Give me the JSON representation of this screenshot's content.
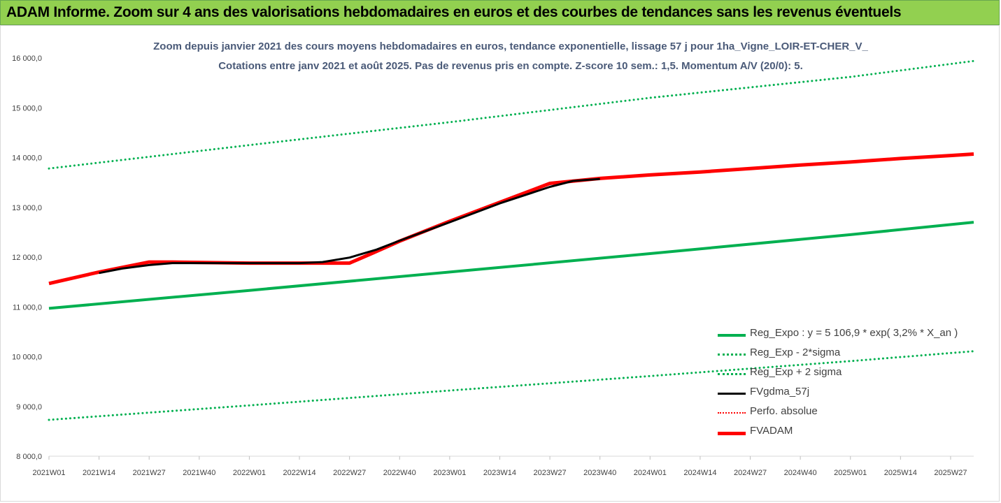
{
  "banner": {
    "title": "ADAM Informe. Zoom sur 4 ans des valorisations hebdomadaires en euros et des courbes de tendances sans les revenus éventuels"
  },
  "colors": {
    "banner_bg": "#92d050",
    "title_text": "#4a5a78",
    "reg_expo": "#00b050",
    "fvgdma": "#000000",
    "perfo": "#ff0000",
    "fvadam": "#ff0000"
  },
  "chart_data": {
    "type": "line",
    "title": "Zoom depuis janvier 2021 des cours moyens hebdomadaires en euros, tendance exponentielle, lissage 57 j pour 1ha_Vigne_LOIR-ET-CHER_V_",
    "subtitle": "Cotations entre janv 2021 et août 2025.  Pas de revenus pris en compte. Z-score 10 sem.: 1,5. Momentum A/V (20/0): 5.",
    "xlabel": "",
    "ylabel": "",
    "ylim": [
      8000,
      16000
    ],
    "xlim": [
      "2021W01",
      "2025W33"
    ],
    "grid": false,
    "legend_position": "bottom-right",
    "x_ticks": [
      "2021W01",
      "2021W14",
      "2021W27",
      "2021W40",
      "2022W01",
      "2022W14",
      "2022W27",
      "2022W40",
      "2023W01",
      "2023W14",
      "2023W27",
      "2023W40",
      "2024W01",
      "2024W14",
      "2024W27",
      "2024W40",
      "2025W01",
      "2025W14",
      "2025W27"
    ],
    "y_ticks": [
      "8 000,0",
      "9 000,0",
      "10 000,0",
      "11 000,0",
      "12 000,0",
      "13 000,0",
      "14 000,0",
      "15 000,0",
      "16 000,0"
    ],
    "y_tick_values": [
      8000,
      9000,
      10000,
      11000,
      12000,
      13000,
      14000,
      15000,
      16000
    ],
    "series": [
      {
        "name": "Reg_Expo : y = 5 106,9 * exp( 3,2% *  X_an )",
        "style": "solid",
        "color": "#00b050",
        "width": 4,
        "x": [
          "2021W01",
          "2022W01",
          "2023W01",
          "2024W01",
          "2025W01",
          "2025W33"
        ],
        "values": [
          10970,
          11330,
          11700,
          12070,
          12450,
          12700
        ]
      },
      {
        "name": "Reg_Exp - 2*sigma",
        "style": "dotted",
        "color": "#00b050",
        "width": 3,
        "x": [
          "2021W01",
          "2022W01",
          "2023W01",
          "2024W01",
          "2025W01",
          "2025W33"
        ],
        "values": [
          8730,
          9020,
          9320,
          9610,
          9910,
          10110
        ]
      },
      {
        "name": "Reg_Exp + 2 sigma",
        "style": "dotted",
        "color": "#00b050",
        "width": 3,
        "x": [
          "2021W01",
          "2022W01",
          "2023W01",
          "2024W01",
          "2025W01",
          "2025W33"
        ],
        "values": [
          13780,
          14250,
          14710,
          15200,
          15620,
          15940
        ]
      },
      {
        "name": "FVgdma_57j",
        "style": "solid",
        "color": "#000000",
        "width": 3,
        "x": [
          "2021W14",
          "2021W20",
          "2021W27",
          "2021W33",
          "2021W40",
          "2022W01",
          "2022W14",
          "2022W20",
          "2022W27",
          "2022W34",
          "2022W40",
          "2023W01",
          "2023W14",
          "2023W27",
          "2023W33",
          "2023W40"
        ],
        "values": [
          11680,
          11770,
          11840,
          11880,
          11880,
          11880,
          11880,
          11900,
          11990,
          12150,
          12330,
          12700,
          13080,
          13410,
          13530,
          13570
        ]
      },
      {
        "name": "Perfo. absolue",
        "style": "dotted",
        "color": "#ff0000",
        "width": 2,
        "x": [],
        "values": []
      },
      {
        "name": "FVADAM",
        "style": "solid",
        "color": "#ff0000",
        "width": 5,
        "x": [
          "2021W01",
          "2021W14",
          "2021W27",
          "2021W33",
          "2022W01",
          "2022W11",
          "2022W27",
          "2022W33",
          "2022W40",
          "2023W01",
          "2023W14",
          "2023W27",
          "2023W40",
          "2024W01",
          "2024W14",
          "2024W27",
          "2024W40",
          "2025W01",
          "2025W14",
          "2025W27",
          "2025W33"
        ],
        "values": [
          11470,
          11700,
          11900,
          11900,
          11880,
          11880,
          11880,
          12080,
          12320,
          12720,
          13100,
          13480,
          13580,
          13650,
          13710,
          13780,
          13850,
          13910,
          13980,
          14040,
          14070
        ]
      }
    ]
  }
}
